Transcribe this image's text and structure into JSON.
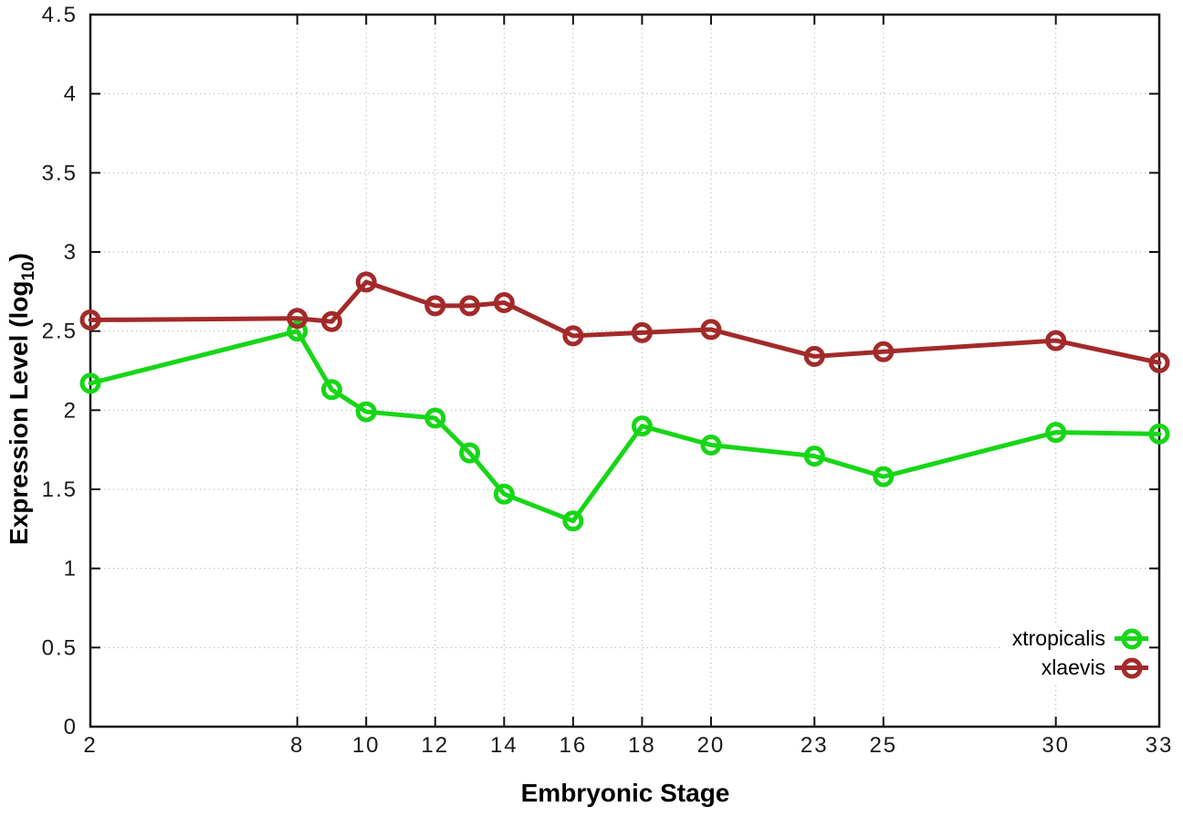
{
  "chart_data": {
    "type": "line",
    "title": "",
    "xlabel": "Embryonic Stage",
    "ylabel_main": "Expression Level (log",
    "ylabel_sub": "10",
    "ylabel_end": ")",
    "xlim": [
      2,
      33
    ],
    "ylim": [
      0,
      4.5
    ],
    "x_ticks": [
      2,
      8,
      10,
      12,
      14,
      16,
      18,
      20,
      23,
      25,
      30,
      33
    ],
    "y_ticks": [
      0,
      0.5,
      1,
      1.5,
      2,
      2.5,
      3,
      3.5,
      4,
      4.5
    ],
    "grid": "dotted",
    "legend_position": "inside-right-bottom",
    "x": [
      2,
      8,
      9,
      10,
      12,
      13,
      14,
      16,
      18,
      20,
      23,
      25,
      30,
      33
    ],
    "series": [
      {
        "name": "xtropicalis",
        "color": "#17d617",
        "marker": "open-circle",
        "values": [
          2.17,
          2.5,
          2.13,
          1.99,
          1.95,
          1.73,
          1.47,
          1.3,
          1.9,
          1.78,
          1.71,
          1.58,
          1.86,
          1.85
        ]
      },
      {
        "name": "xlaevis",
        "color": "#a32a2a",
        "marker": "open-circle",
        "values": [
          2.57,
          2.58,
          2.56,
          2.81,
          2.66,
          2.66,
          2.68,
          2.47,
          2.49,
          2.51,
          2.34,
          2.37,
          2.44,
          2.3
        ]
      }
    ]
  }
}
